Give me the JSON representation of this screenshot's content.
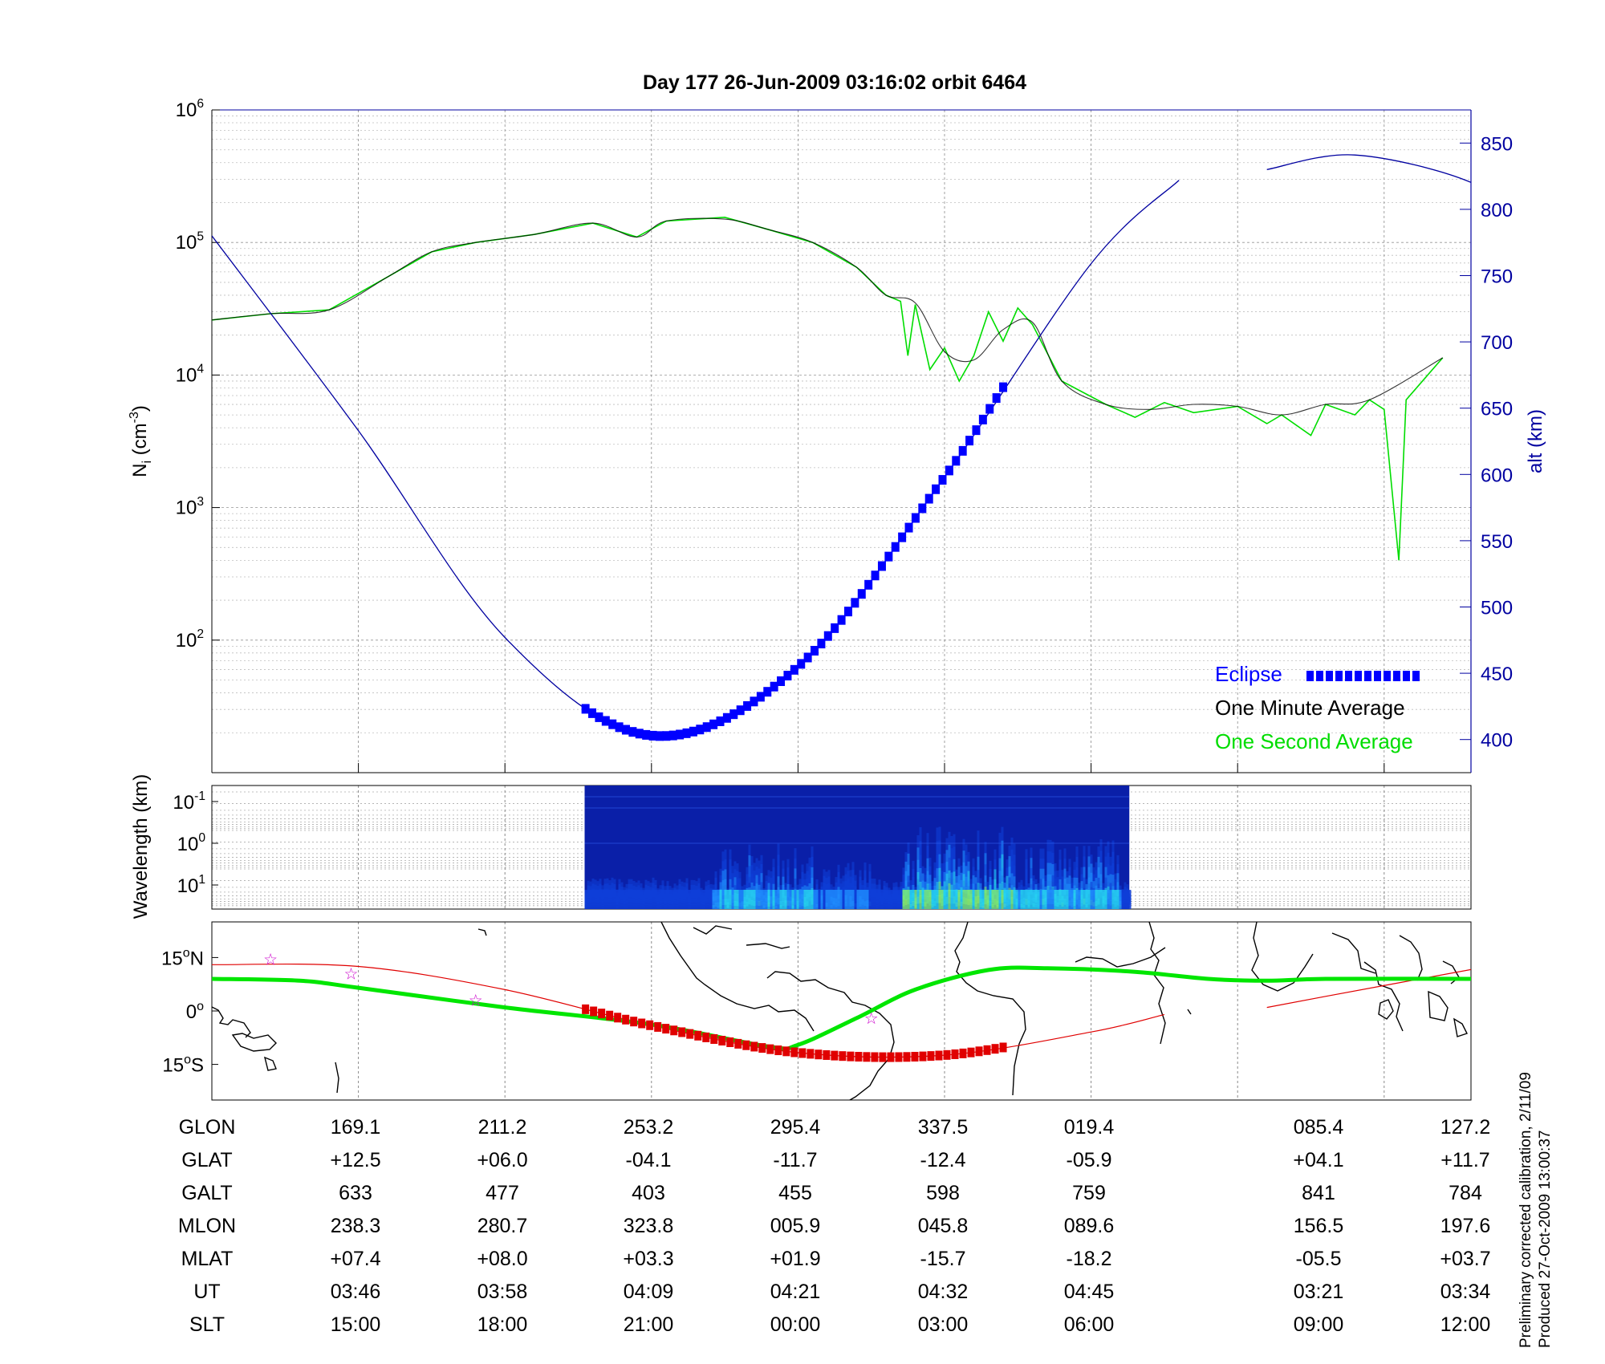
{
  "title": "Day 177  26-Jun-2009 03:16:02   orbit 6464",
  "footer": {
    "line1": "Preliminary corrected calibration, 2/11/09",
    "line2": "Produced 27-Oct-2009 13:00:37"
  },
  "colors": {
    "altitude": "#0000a0",
    "eclipse": "#0000ff",
    "one_minute": "#000000",
    "one_second": "#00dd00",
    "track_red": "#e00000",
    "dip_green": "#00e600",
    "star": "#cc00cc"
  },
  "chart_data": [
    {
      "type": "line",
      "panel": "density",
      "ylabel_left": "N_i (cm^-3)",
      "ylabel_right": "alt (km)",
      "yscale_left": "log",
      "ylim_left": [
        10,
        1000000
      ],
      "yticks_left": [
        "10^2",
        "10^3",
        "10^4",
        "10^5",
        "10^6"
      ],
      "ylim_right": [
        375,
        875
      ],
      "yticks_right": [
        400,
        450,
        500,
        550,
        600,
        650,
        700,
        750,
        800,
        850
      ],
      "grid": true,
      "legend_position": "bottom-right",
      "legend": [
        "Eclipse",
        "One Minute Average",
        "One Second Average"
      ],
      "x_index": [
        0,
        1,
        2,
        3,
        4,
        5,
        6,
        7,
        8
      ],
      "series": [
        {
          "name": "One Minute Average",
          "axis": "left",
          "points": [
            [
              0,
              26000
            ],
            [
              0.4,
              29000
            ],
            [
              0.8,
              31000
            ],
            [
              1.2,
              55000
            ],
            [
              1.5,
              85000
            ],
            [
              1.8,
              100000
            ],
            [
              2.2,
              115000
            ],
            [
              2.6,
              140000
            ],
            [
              2.9,
              110000
            ],
            [
              3.1,
              145000
            ],
            [
              3.5,
              150000
            ],
            [
              3.8,
              125000
            ],
            [
              4.1,
              100000
            ],
            [
              4.4,
              65000
            ],
            [
              4.6,
              40000
            ],
            [
              4.8,
              35000
            ],
            [
              5.0,
              15000
            ],
            [
              5.2,
              13000
            ],
            [
              5.4,
              22000
            ],
            [
              5.6,
              25000
            ],
            [
              5.8,
              9000
            ],
            [
              6.1,
              6000
            ],
            [
              6.4,
              5500
            ],
            [
              6.7,
              6000
            ],
            [
              7.0,
              5800
            ],
            [
              7.3,
              5000
            ],
            [
              7.6,
              6000
            ],
            [
              7.9,
              6500
            ],
            [
              8.4,
              13500
            ],
            [
              null,
              null
            ],
            [
              9.1,
              19000
            ],
            [
              9.6,
              23000
            ],
            [
              10.1,
              22000
            ],
            [
              10.6,
              24000
            ]
          ]
        },
        {
          "name": "One Second Average",
          "axis": "left",
          "points": [
            [
              0,
              26000
            ],
            [
              0.4,
              29000
            ],
            [
              0.8,
              31000
            ],
            [
              1.2,
              55000
            ],
            [
              1.5,
              85000
            ],
            [
              1.8,
              100000
            ],
            [
              2.2,
              115000
            ],
            [
              2.6,
              140000
            ],
            [
              2.9,
              110000
            ],
            [
              3.1,
              145000
            ],
            [
              3.5,
              155000
            ],
            [
              3.8,
              125000
            ],
            [
              4.1,
              100000
            ],
            [
              4.4,
              65000
            ],
            [
              4.6,
              40000
            ],
            [
              4.7,
              36000
            ],
            [
              4.75,
              14000
            ],
            [
              4.8,
              34000
            ],
            [
              4.9,
              11000
            ],
            [
              5.0,
              16000
            ],
            [
              5.1,
              9000
            ],
            [
              5.2,
              14000
            ],
            [
              5.3,
              30000
            ],
            [
              5.4,
              18000
            ],
            [
              5.5,
              32000
            ],
            [
              5.6,
              24000
            ],
            [
              5.8,
              9000
            ],
            [
              6.1,
              6000
            ],
            [
              6.3,
              4800
            ],
            [
              6.5,
              6200
            ],
            [
              6.7,
              5200
            ],
            [
              7.0,
              5800
            ],
            [
              7.2,
              4300
            ],
            [
              7.3,
              5000
            ],
            [
              7.5,
              3500
            ],
            [
              7.6,
              6000
            ],
            [
              7.8,
              5000
            ],
            [
              7.9,
              6500
            ],
            [
              8.0,
              5500
            ],
            [
              8.1,
              400
            ],
            [
              8.15,
              6500
            ],
            [
              8.4,
              13500
            ]
          ]
        },
        {
          "name": "alt",
          "axis": "right",
          "points": [
            [
              0,
              780
            ],
            [
              1.0,
              633
            ],
            [
              2.0,
              477
            ],
            [
              3.0,
              403
            ],
            [
              4.0,
              455
            ],
            [
              5.0,
              598
            ],
            [
              6.0,
              759
            ],
            [
              6.6,
              822
            ],
            [
              null,
              null
            ],
            [
              7.2,
              830
            ],
            [
              7.8,
              841
            ],
            [
              8.6,
              820
            ],
            [
              9.0,
              784
            ]
          ]
        },
        {
          "name": "Eclipse",
          "axis": "right",
          "x_range": [
            2.55,
            5.4
          ]
        }
      ]
    },
    {
      "type": "heatmap",
      "panel": "spectrogram",
      "ylabel": "Wavelength (km)",
      "yticks": [
        "10^-1",
        "10^0",
        "10^1"
      ],
      "x_range": [
        2.5,
        6.25
      ]
    },
    {
      "type": "line",
      "panel": "map",
      "yticks": [
        "15°N",
        "0°",
        "15°S"
      ],
      "ylim": [
        -25,
        25
      ],
      "series": [
        {
          "name": "ground track",
          "points": [
            [
              0,
              13
            ],
            [
              1.0,
              12.5
            ],
            [
              2.0,
              6.0
            ],
            [
              3.0,
              -4.1
            ],
            [
              4.0,
              -11.7
            ],
            [
              5.0,
              -12.4
            ],
            [
              6.0,
              -5.9
            ],
            [
              6.5,
              -1
            ],
            [
              null,
              null
            ],
            [
              7.2,
              1
            ],
            [
              7.6,
              4.1
            ],
            [
              8.6,
              11.7
            ]
          ]
        },
        {
          "name": "magnetic dip equator",
          "points": [
            [
              0,
              9
            ],
            [
              0.6,
              8.5
            ],
            [
              1.0,
              6.5
            ],
            [
              2.0,
              1
            ],
            [
              3.0,
              -3.8
            ],
            [
              3.8,
              -10
            ],
            [
              4.0,
              -9.5
            ],
            [
              4.4,
              -2
            ],
            [
              4.8,
              6
            ],
            [
              5.3,
              11.5
            ],
            [
              5.7,
              12
            ],
            [
              6.3,
              11
            ],
            [
              6.8,
              9
            ],
            [
              7.2,
              8.5
            ],
            [
              7.6,
              9
            ],
            [
              8.6,
              9
            ]
          ]
        }
      ],
      "stars": [
        [
          0.4,
          14.5
        ],
        [
          0.95,
          10.5
        ],
        [
          1.8,
          3
        ],
        [
          4.5,
          -2
        ]
      ]
    }
  ],
  "table": {
    "row_labels": [
      "GLON",
      "GLAT",
      "GALT",
      "MLON",
      "MLAT",
      "UT",
      "SLT"
    ],
    "columns": [
      [
        "169.1",
        "+12.5",
        "633",
        "238.3",
        "+07.4",
        "03:46",
        "15:00"
      ],
      [
        "211.2",
        "+06.0",
        "477",
        "280.7",
        "+08.0",
        "03:58",
        "18:00"
      ],
      [
        "253.2",
        "-04.1",
        "403",
        "323.8",
        "+03.3",
        "04:09",
        "21:00"
      ],
      [
        "295.4",
        "-11.7",
        "455",
        "005.9",
        "+01.9",
        "04:21",
        "00:00"
      ],
      [
        "337.5",
        "-12.4",
        "598",
        "045.8",
        "-15.7",
        "04:32",
        "03:00"
      ],
      [
        "019.4",
        "-05.9",
        "759",
        "089.6",
        "-18.2",
        "04:45",
        "06:00"
      ],
      [
        "085.4",
        "+04.1",
        "841",
        "156.5",
        "-05.5",
        "03:21",
        "09:00"
      ],
      [
        "127.2",
        "+11.7",
        "784",
        "197.6",
        "+03.7",
        "03:34",
        "12:00"
      ]
    ]
  }
}
